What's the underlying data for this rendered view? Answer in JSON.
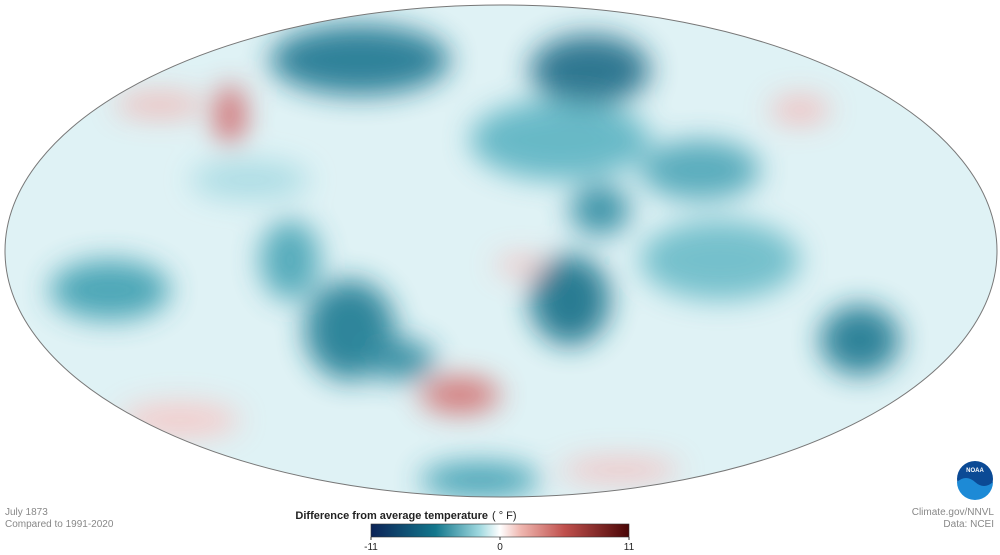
{
  "header": {
    "date": "July 1873",
    "baseline": "Compared to 1991-2020"
  },
  "legend": {
    "title": "Difference from average temperature",
    "unit": "( ° F)",
    "ticks": [
      -11,
      0,
      11
    ]
  },
  "credits": {
    "source": "Climate.gov/NNVL",
    "data": "Data: NCEI",
    "logo": "NOAA"
  }
}
